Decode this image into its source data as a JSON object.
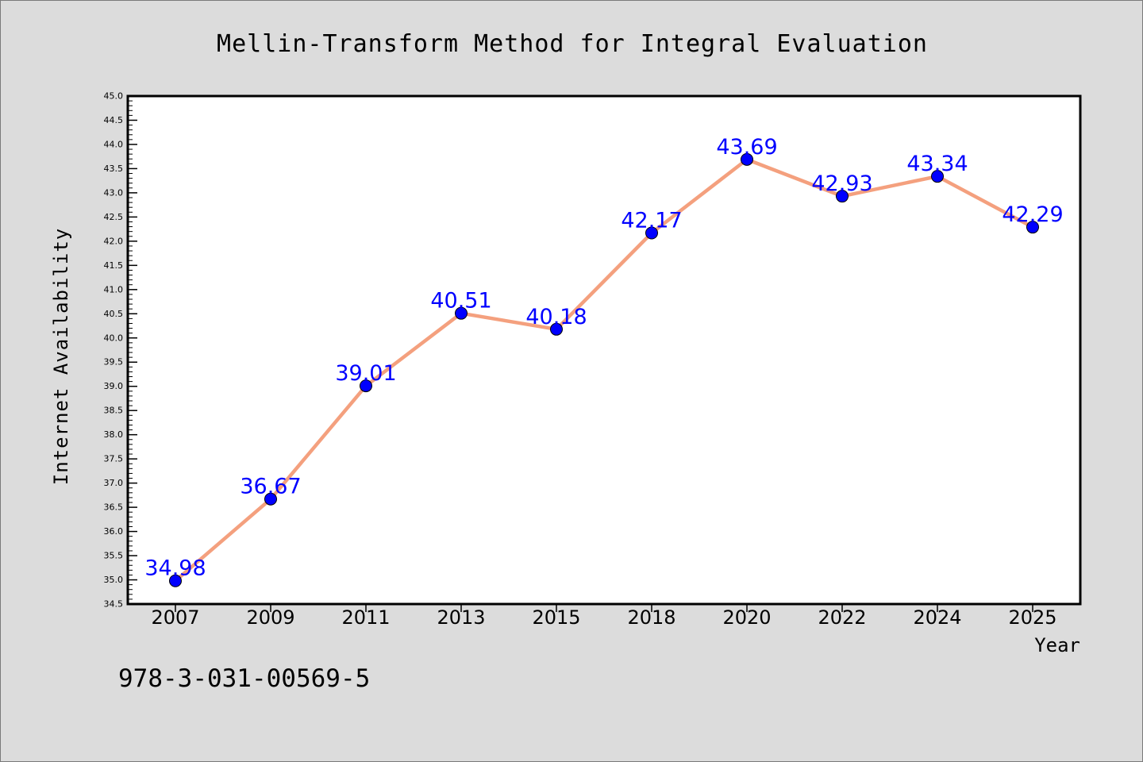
{
  "colors": {
    "background": "#dcdcdc",
    "plot_background": "#ffffff",
    "line": "#f4a07e",
    "marker": "#0000ff",
    "data_label": "#0000ff",
    "text": "#000000"
  },
  "footer_text": "978-3-031-00569-5",
  "chart_data": {
    "type": "line",
    "title": "Mellin-Transform Method for Integral Evaluation",
    "xlabel": "Year",
    "ylabel": "Internet Availability",
    "categories": [
      "2007",
      "2009",
      "2011",
      "2013",
      "2015",
      "2018",
      "2020",
      "2022",
      "2024",
      "2025"
    ],
    "series": [
      {
        "values": [
          34.98,
          36.67,
          39.01,
          40.51,
          40.18,
          42.17,
          43.69,
          42.93,
          43.34,
          42.29
        ],
        "labels": [
          "34.98",
          "36.67",
          "39.01",
          "40.51",
          "40.18",
          "42.17",
          "43.69",
          "42.93",
          "43.34",
          "42.29"
        ]
      }
    ],
    "ylim": [
      34.5,
      45.0
    ],
    "yticks": [
      "34.5",
      "35.0",
      "35.5",
      "36.0",
      "36.5",
      "37.0",
      "37.5",
      "38.0",
      "38.5",
      "39.0",
      "39.5",
      "40.0",
      "40.5",
      "41.0",
      "41.5",
      "42.0",
      "42.5",
      "43.0",
      "43.5",
      "44.0",
      "44.5",
      "45.0"
    ],
    "grid": false,
    "legend": "none",
    "markers": "circle"
  }
}
